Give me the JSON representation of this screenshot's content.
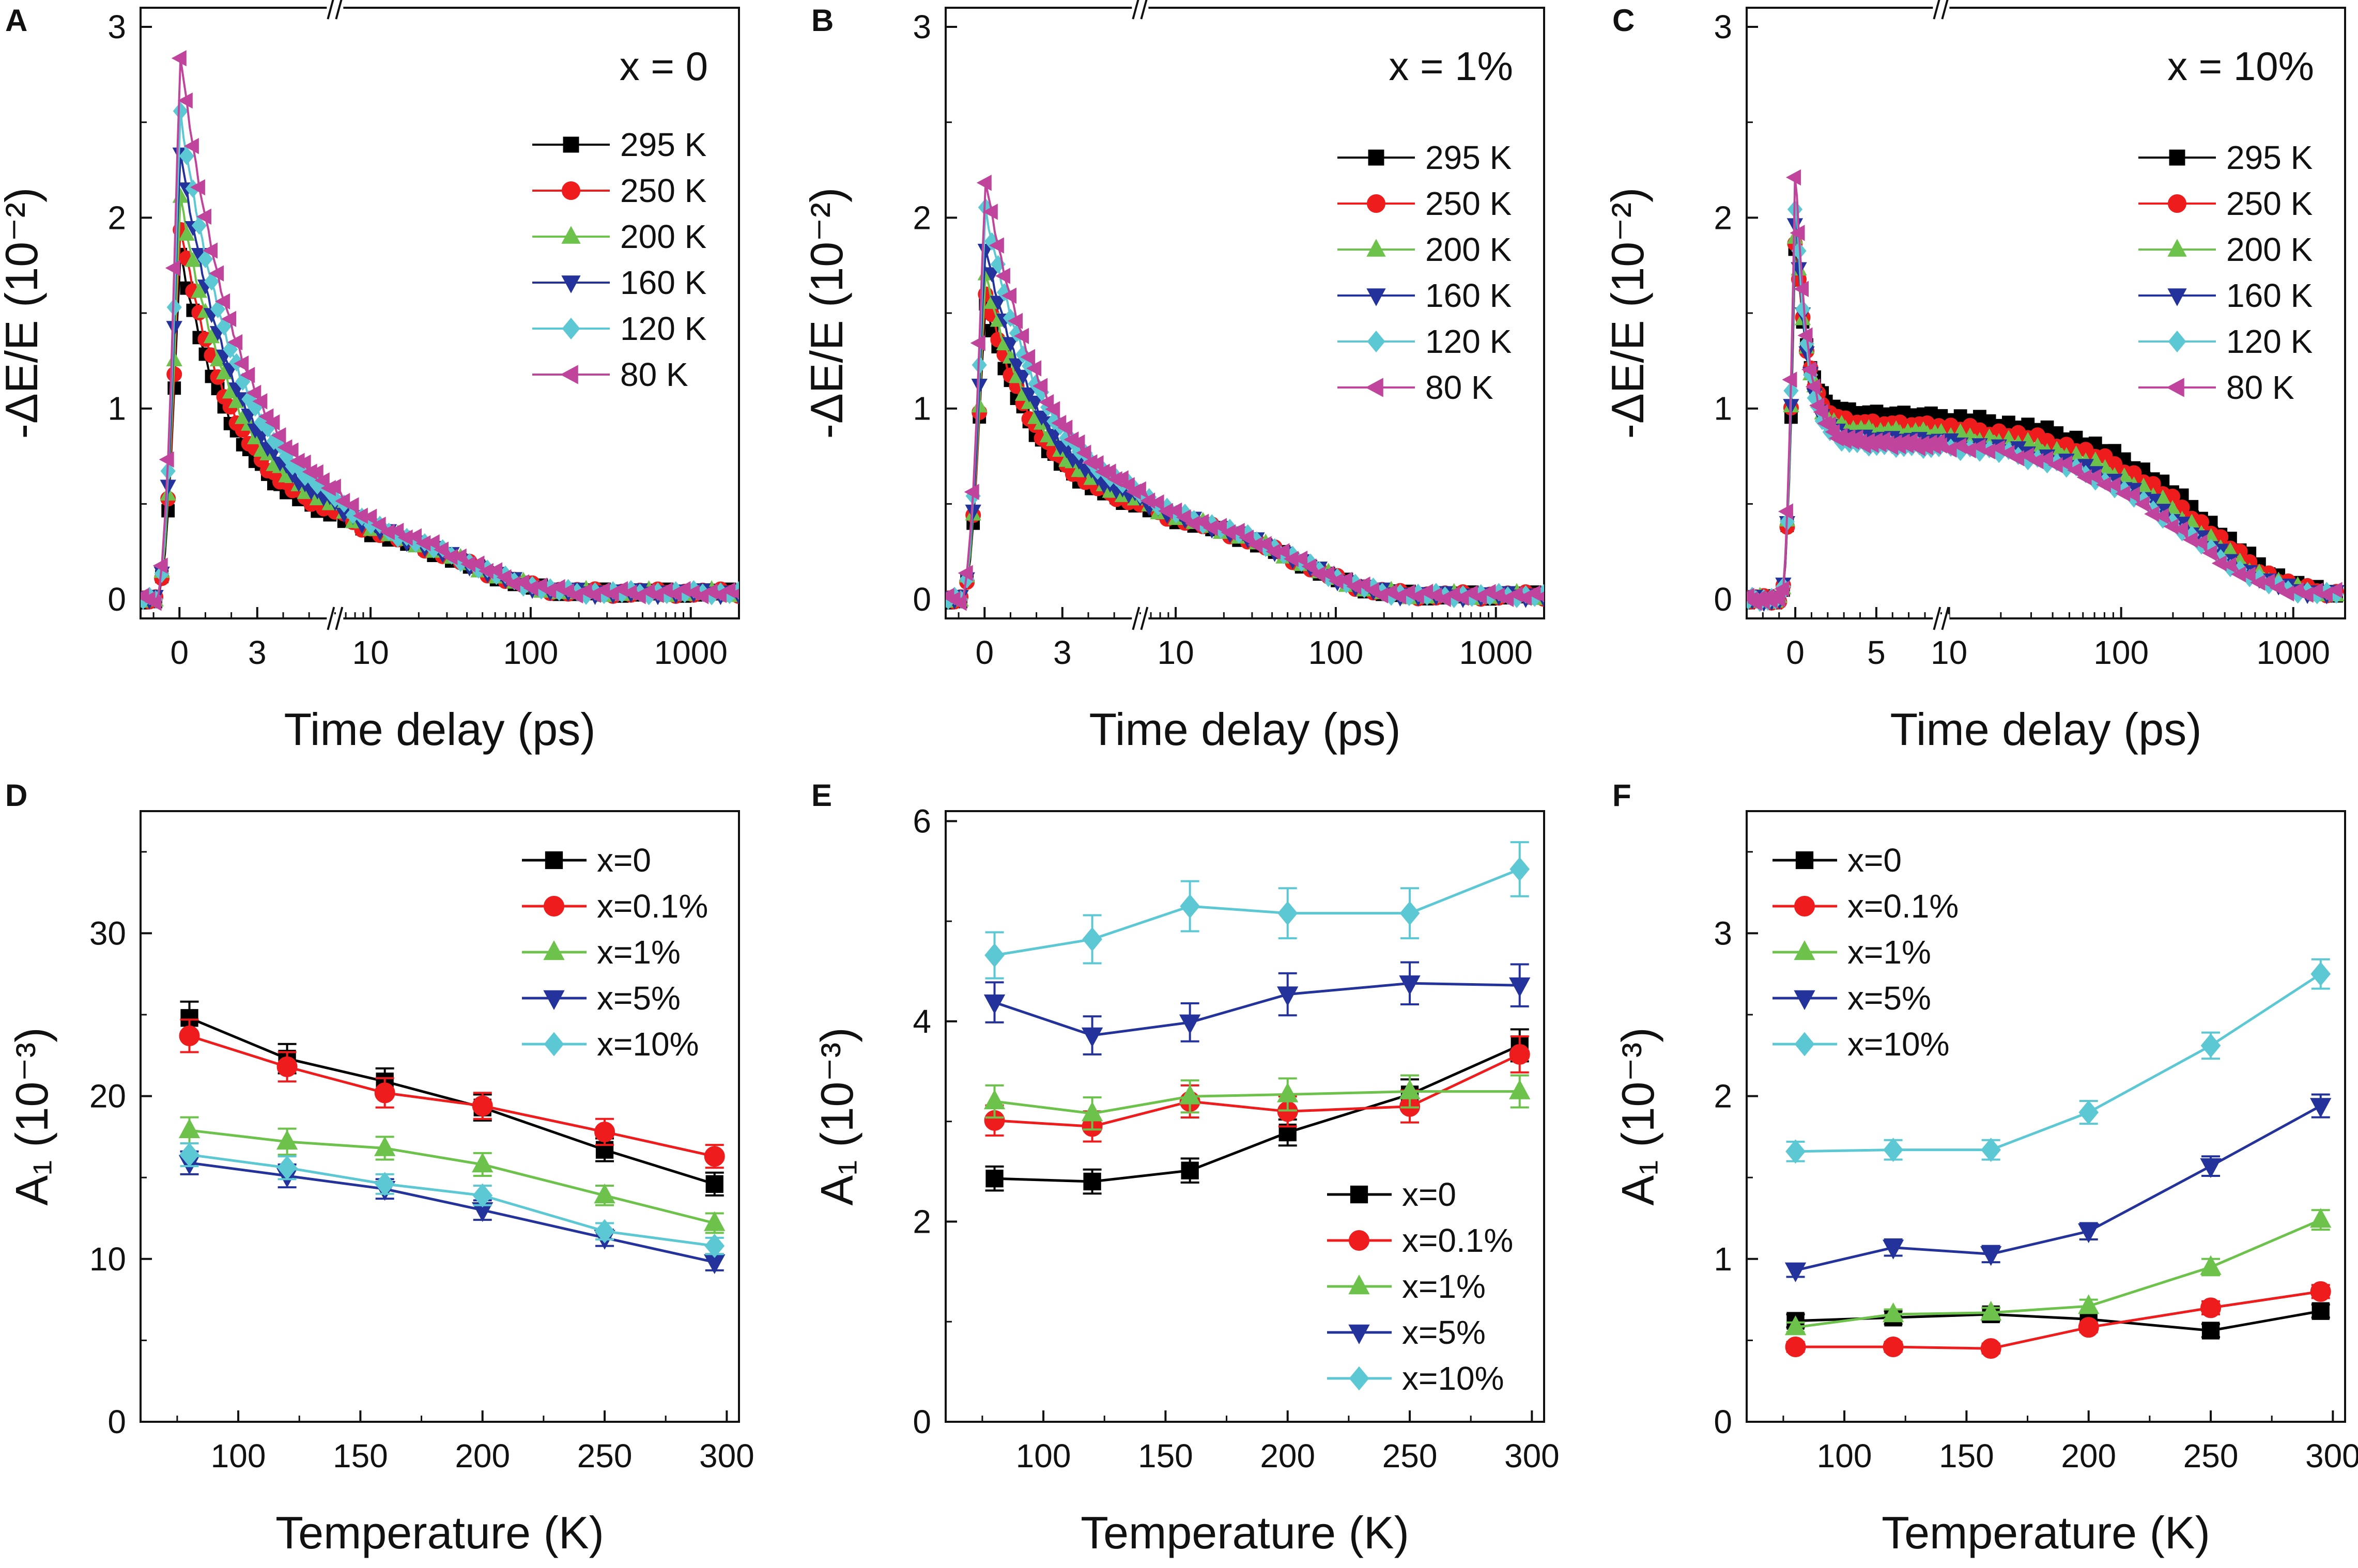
{
  "colors": {
    "295 K": "#000000",
    "250 K": "#ee1c1c",
    "200 K": "#6cc24a",
    "160 K": "#24339b",
    "120 K": "#5bc8d4",
    "80 K": "#c0449c",
    "x=0": "#000000",
    "x=0.1%": "#ee1c1c",
    "x=1%": "#6cc24a",
    "x=5%": "#24339b",
    "x=10%": "#5bc8d4"
  },
  "chart_data": [
    {
      "panel": "A",
      "type": "scatter",
      "annotation": "x = 0",
      "xlabel": "Time delay (ps)",
      "ylabel": "-ΔE/E (10⁻²)",
      "ylim": [
        -0.1,
        3.1
      ],
      "yticks": [
        "0",
        "1",
        "2",
        "3"
      ],
      "xaxis": "broken: linear -1.5 to 6, log 6 to 2000",
      "xticks": [
        "0",
        "3",
        "10",
        "100",
        "1000"
      ],
      "legend_position": "top-right",
      "series": [
        {
          "name": "295 K",
          "marker": "square",
          "peak": 1.8,
          "tau1": 2.0,
          "f2": 0.22,
          "tau2": 40,
          "c": 0.035
        },
        {
          "name": "250 K",
          "marker": "circle",
          "peak": 1.95,
          "tau1": 2.0,
          "f2": 0.21,
          "tau2": 40,
          "c": 0.035
        },
        {
          "name": "200 K",
          "marker": "triangle-up",
          "peak": 2.1,
          "tau1": 2.1,
          "f2": 0.2,
          "tau2": 40,
          "c": 0.035
        },
        {
          "name": "160 K",
          "marker": "triangle-down",
          "peak": 2.35,
          "tau1": 2.1,
          "f2": 0.18,
          "tau2": 40,
          "c": 0.035
        },
        {
          "name": "120 K",
          "marker": "diamond",
          "peak": 2.55,
          "tau1": 2.2,
          "f2": 0.17,
          "tau2": 40,
          "c": 0.035
        },
        {
          "name": "80 K",
          "marker": "triangle-left",
          "peak": 2.85,
          "tau1": 2.2,
          "f2": 0.16,
          "tau2": 40,
          "c": 0.035
        }
      ]
    },
    {
      "panel": "B",
      "type": "scatter",
      "annotation": "x = 1%",
      "xlabel": "Time delay (ps)",
      "ylabel": "-ΔE/E (10⁻²)",
      "ylim": [
        -0.1,
        3.1
      ],
      "yticks": [
        "0",
        "1",
        "2",
        "3"
      ],
      "xaxis": "broken: linear -1.5 to 6, log 6 to 2000",
      "xticks": [
        "0",
        "3",
        "10",
        "100",
        "1000"
      ],
      "legend_position": "top-right",
      "series": [
        {
          "name": "295 K",
          "marker": "square",
          "peak": 1.55,
          "tau1": 2.0,
          "f2": 0.3,
          "tau2": 60,
          "c": 0.02
        },
        {
          "name": "250 K",
          "marker": "circle",
          "peak": 1.62,
          "tau1": 2.0,
          "f2": 0.29,
          "tau2": 60,
          "c": 0.02
        },
        {
          "name": "200 K",
          "marker": "triangle-up",
          "peak": 1.7,
          "tau1": 2.1,
          "f2": 0.28,
          "tau2": 60,
          "c": 0.02
        },
        {
          "name": "160 K",
          "marker": "triangle-down",
          "peak": 1.85,
          "tau1": 2.1,
          "f2": 0.26,
          "tau2": 60,
          "c": 0.02
        },
        {
          "name": "120 K",
          "marker": "diamond",
          "peak": 2.05,
          "tau1": 2.2,
          "f2": 0.24,
          "tau2": 60,
          "c": 0.02
        },
        {
          "name": "80 K",
          "marker": "triangle-left",
          "peak": 2.2,
          "tau1": 2.2,
          "f2": 0.22,
          "tau2": 60,
          "c": 0.02
        }
      ]
    },
    {
      "panel": "C",
      "type": "scatter",
      "annotation": "x = 10%",
      "xlabel": "Time delay (ps)",
      "ylabel": "-ΔE/E (10⁻²)",
      "ylim": [
        -0.1,
        3.1
      ],
      "yticks": [
        "0",
        "1",
        "2",
        "3"
      ],
      "xaxis": "broken: linear -3 to 9, log 9 to 2000",
      "xticks": [
        "0",
        "5",
        "10",
        "100",
        "1000"
      ],
      "legend_position": "top-right",
      "series": [
        {
          "name": "295 K",
          "marker": "square",
          "peak": 1.9,
          "tau1": 0.7,
          "f2": 0.5,
          "tau2": 350,
          "c": 0.03
        },
        {
          "name": "250 K",
          "marker": "circle",
          "peak": 1.95,
          "tau1": 0.7,
          "f2": 0.46,
          "tau2": 330,
          "c": 0.03
        },
        {
          "name": "200 K",
          "marker": "triangle-up",
          "peak": 2.0,
          "tau1": 0.7,
          "f2": 0.43,
          "tau2": 300,
          "c": 0.03
        },
        {
          "name": "160 K",
          "marker": "triangle-down",
          "peak": 2.05,
          "tau1": 0.7,
          "f2": 0.4,
          "tau2": 280,
          "c": 0.03
        },
        {
          "name": "120 K",
          "marker": "diamond",
          "peak": 2.15,
          "tau1": 0.7,
          "f2": 0.37,
          "tau2": 260,
          "c": 0.03
        },
        {
          "name": "80 K",
          "marker": "triangle-left",
          "peak": 2.3,
          "tau1": 0.7,
          "f2": 0.35,
          "tau2": 250,
          "c": 0.03
        }
      ]
    },
    {
      "panel": "D",
      "type": "line",
      "xlabel": "Temperature (K)",
      "ylabel": "A₁ (10⁻³)",
      "xlim": [
        60,
        305
      ],
      "xticks": [
        "100",
        "150",
        "200",
        "250",
        "300"
      ],
      "ylim": [
        0,
        37.5
      ],
      "yticks": [
        "0",
        "10",
        "20",
        "30"
      ],
      "legend_position": "top-right",
      "x": [
        80,
        120,
        160,
        200,
        250,
        295
      ],
      "series": [
        {
          "name": "x=0",
          "marker": "square",
          "values": [
            24.8,
            22.3,
            20.9,
            19.3,
            16.7,
            14.6
          ],
          "err": [
            1.0,
            0.9,
            0.8,
            0.8,
            0.7,
            0.7
          ]
        },
        {
          "name": "x=0.1%",
          "marker": "circle",
          "values": [
            23.7,
            21.8,
            20.2,
            19.4,
            17.8,
            16.3
          ],
          "err": [
            1.0,
            0.9,
            0.9,
            0.8,
            0.8,
            0.7
          ]
        },
        {
          "name": "x=1%",
          "marker": "triangle-up",
          "values": [
            17.9,
            17.2,
            16.8,
            15.8,
            13.9,
            12.2
          ],
          "err": [
            0.8,
            0.8,
            0.7,
            0.7,
            0.6,
            0.6
          ]
        },
        {
          "name": "x=5%",
          "marker": "triangle-down",
          "values": [
            15.9,
            15.1,
            14.3,
            13.0,
            11.3,
            9.8
          ],
          "err": [
            0.7,
            0.7,
            0.6,
            0.6,
            0.5,
            0.5
          ]
        },
        {
          "name": "x=10%",
          "marker": "diamond",
          "values": [
            16.4,
            15.6,
            14.6,
            13.9,
            11.7,
            10.8
          ],
          "err": [
            0.7,
            0.7,
            0.6,
            0.6,
            0.5,
            0.5
          ]
        }
      ]
    },
    {
      "panel": "E",
      "type": "line",
      "xlabel": "Temperature (K)",
      "ylabel": "A₁ (10⁻³)",
      "xlim": [
        60,
        305
      ],
      "xticks": [
        "100",
        "150",
        "200",
        "250",
        "300"
      ],
      "ylim": [
        0,
        6.1
      ],
      "yticks": [
        "0",
        "2",
        "4",
        "6"
      ],
      "legend_position": "bottom-right",
      "x": [
        80,
        120,
        160,
        200,
        250,
        295
      ],
      "series": [
        {
          "name": "x=0",
          "marker": "square",
          "values": [
            2.43,
            2.4,
            2.51,
            2.89,
            3.27,
            3.76
          ],
          "err": [
            0.12,
            0.12,
            0.12,
            0.13,
            0.15,
            0.16
          ]
        },
        {
          "name": "x=0.1%",
          "marker": "circle",
          "values": [
            3.01,
            2.95,
            3.2,
            3.1,
            3.15,
            3.67
          ],
          "err": [
            0.15,
            0.15,
            0.16,
            0.15,
            0.16,
            0.18
          ]
        },
        {
          "name": "x=1%",
          "marker": "triangle-up",
          "values": [
            3.2,
            3.08,
            3.25,
            3.27,
            3.3,
            3.3
          ],
          "err": [
            0.16,
            0.16,
            0.16,
            0.16,
            0.16,
            0.16
          ]
        },
        {
          "name": "x=5%",
          "marker": "triangle-down",
          "values": [
            4.19,
            3.86,
            3.99,
            4.27,
            4.38,
            4.36
          ],
          "err": [
            0.2,
            0.19,
            0.19,
            0.21,
            0.21,
            0.21
          ]
        },
        {
          "name": "x=10%",
          "marker": "diamond",
          "values": [
            4.66,
            4.82,
            5.15,
            5.08,
            5.08,
            5.52
          ],
          "err": [
            0.23,
            0.24,
            0.25,
            0.25,
            0.25,
            0.27
          ]
        }
      ]
    },
    {
      "panel": "F",
      "type": "line",
      "xlabel": "Temperature (K)",
      "ylabel": "A₁ (10⁻³)",
      "xlim": [
        60,
        305
      ],
      "xticks": [
        "100",
        "150",
        "200",
        "250",
        "300"
      ],
      "ylim": [
        0,
        3.75
      ],
      "yticks": [
        "0",
        "1",
        "2",
        "3"
      ],
      "legend_position": "top-left",
      "x": [
        80,
        120,
        160,
        200,
        250,
        295
      ],
      "series": [
        {
          "name": "x=0",
          "marker": "square",
          "values": [
            0.62,
            0.64,
            0.66,
            0.63,
            0.56,
            0.68
          ],
          "err": [
            0.04,
            0.04,
            0.04,
            0.04,
            0.04,
            0.04
          ]
        },
        {
          "name": "x=0.1%",
          "marker": "circle",
          "values": [
            0.46,
            0.46,
            0.45,
            0.58,
            0.7,
            0.8
          ],
          "err": [
            0.03,
            0.03,
            0.03,
            0.03,
            0.04,
            0.04
          ]
        },
        {
          "name": "x=1%",
          "marker": "triangle-up",
          "values": [
            0.58,
            0.66,
            0.67,
            0.71,
            0.95,
            1.24
          ],
          "err": [
            0.03,
            0.03,
            0.03,
            0.04,
            0.05,
            0.06
          ]
        },
        {
          "name": "x=5%",
          "marker": "triangle-down",
          "values": [
            0.93,
            1.07,
            1.03,
            1.17,
            1.57,
            1.94
          ],
          "err": [
            0.04,
            0.05,
            0.05,
            0.05,
            0.06,
            0.07
          ]
        },
        {
          "name": "x=10%",
          "marker": "diamond",
          "values": [
            1.66,
            1.67,
            1.67,
            1.9,
            2.31,
            2.75
          ],
          "err": [
            0.06,
            0.06,
            0.06,
            0.07,
            0.08,
            0.09
          ]
        }
      ]
    }
  ]
}
